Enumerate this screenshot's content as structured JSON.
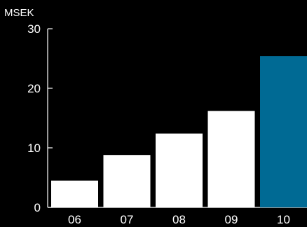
{
  "chart_data": {
    "type": "bar",
    "ylabel": "MSEK",
    "categories": [
      "06",
      "07",
      "08",
      "09",
      "10"
    ],
    "values": [
      4.5,
      8.8,
      12.4,
      16.2,
      25.4
    ],
    "ylim": [
      0,
      30
    ],
    "yticks": [
      0,
      10,
      20,
      30
    ],
    "grid": false,
    "colors": {
      "background": "#000000",
      "bar": "#ffffff",
      "highlight_bar": "#006a94",
      "axis": "#ffffff",
      "text": "#ffffff"
    },
    "highlight_index": 4
  }
}
